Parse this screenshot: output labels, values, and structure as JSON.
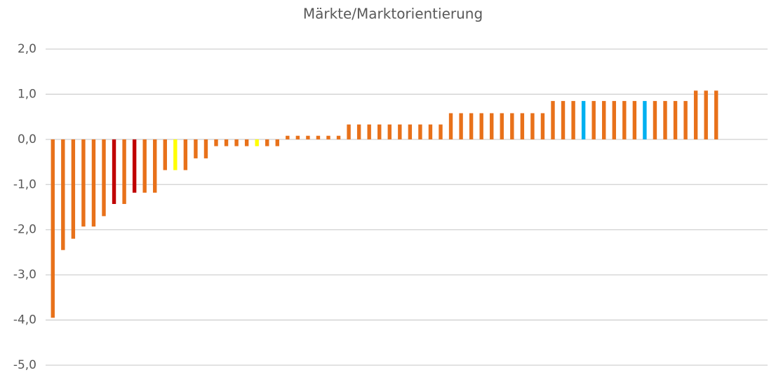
{
  "chart_data": {
    "type": "bar",
    "title": "Märkte/Marktorientierung",
    "values": [
      -3.95,
      -2.45,
      -2.2,
      -1.93,
      -1.93,
      -1.7,
      -1.43,
      -1.43,
      -1.18,
      -1.18,
      -1.18,
      -0.68,
      -0.68,
      -0.68,
      -0.42,
      -0.42,
      -0.15,
      -0.15,
      -0.15,
      -0.15,
      -0.15,
      -0.15,
      -0.15,
      0.08,
      0.08,
      0.08,
      0.08,
      0.08,
      0.08,
      0.33,
      0.33,
      0.33,
      0.33,
      0.33,
      0.33,
      0.33,
      0.33,
      0.33,
      0.33,
      0.58,
      0.58,
      0.58,
      0.58,
      0.58,
      0.58,
      0.58,
      0.58,
      0.58,
      0.58,
      0.85,
      0.85,
      0.85,
      0.85,
      0.85,
      0.85,
      0.85,
      0.85,
      0.85,
      0.85,
      0.85,
      0.85,
      0.85,
      0.85,
      1.08,
      1.08,
      1.08
    ],
    "colors": [
      "#e8711a",
      "#e8711a",
      "#e8711a",
      "#e8711a",
      "#e8711a",
      "#e8711a",
      "#c00000",
      "#e8711a",
      "#c00000",
      "#e8711a",
      "#e8711a",
      "#e8711a",
      "#ffff00",
      "#e8711a",
      "#e8711a",
      "#e8711a",
      "#e8711a",
      "#e8711a",
      "#e8711a",
      "#e8711a",
      "#ffff00",
      "#e8711a",
      "#e8711a",
      "#e8711a",
      "#e8711a",
      "#e8711a",
      "#e8711a",
      "#e8711a",
      "#e8711a",
      "#e8711a",
      "#e8711a",
      "#e8711a",
      "#e8711a",
      "#e8711a",
      "#e8711a",
      "#e8711a",
      "#e8711a",
      "#e8711a",
      "#e8711a",
      "#e8711a",
      "#e8711a",
      "#e8711a",
      "#e8711a",
      "#e8711a",
      "#e8711a",
      "#e8711a",
      "#e8711a",
      "#e8711a",
      "#e8711a",
      "#e8711a",
      "#e8711a",
      "#e8711a",
      "#00b0f0",
      "#e8711a",
      "#e8711a",
      "#e8711a",
      "#e8711a",
      "#e8711a",
      "#00b0f0",
      "#e8711a",
      "#e8711a",
      "#e8711a",
      "#e8711a",
      "#e8711a",
      "#e8711a",
      "#e8711a"
    ],
    "ylim": [
      -5,
      2
    ],
    "yticks": [
      {
        "value": -5,
        "label": "-5,0"
      },
      {
        "value": -4,
        "label": "-4,0"
      },
      {
        "value": -3,
        "label": "-3,0"
      },
      {
        "value": -2,
        "label": "-2,0"
      },
      {
        "value": -1,
        "label": "-1,0"
      },
      {
        "value": 0,
        "label": "0,0"
      },
      {
        "value": 1,
        "label": "1,0"
      },
      {
        "value": 2,
        "label": "2,0"
      }
    ],
    "grid": true
  }
}
